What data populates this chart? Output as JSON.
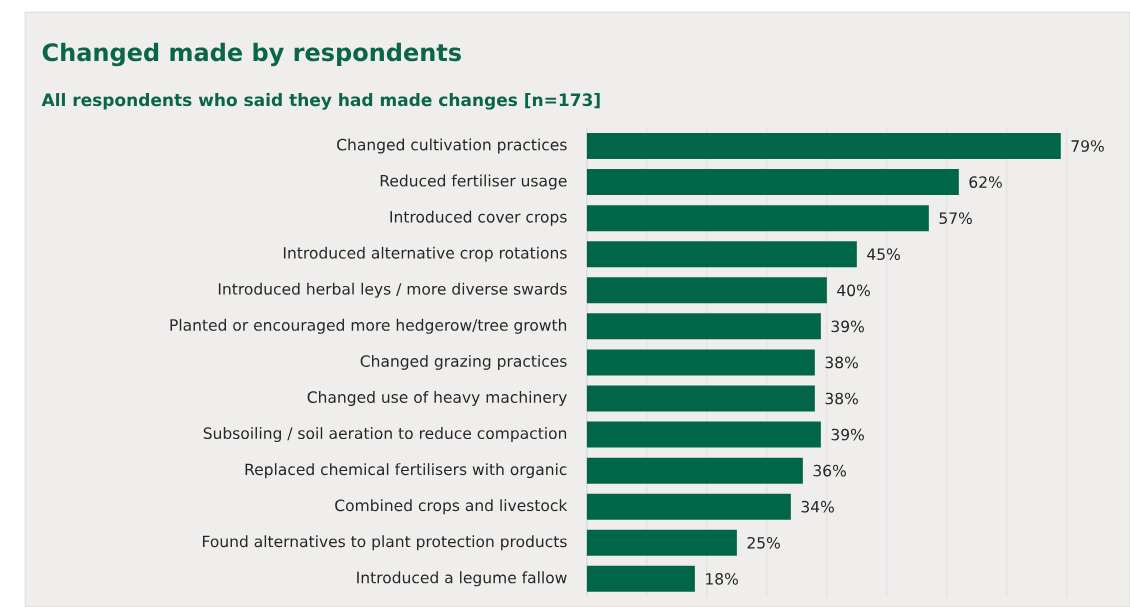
{
  "chart_data": {
    "type": "bar",
    "orientation": "horizontal",
    "title": "Changed made by respondents",
    "subtitle": "All respondents who said they had made changes [n=173]",
    "categories": [
      "Changed cultivation practices",
      "Reduced fertiliser usage",
      "Introduced cover crops",
      "Introduced alternative crop rotations",
      "Introduced herbal leys / more diverse swards",
      "Planted or encouraged more hedgerow/tree growth",
      "Changed grazing practices",
      "Changed use of heavy machinery",
      "Subsoiling / soil aeration to reduce compaction",
      "Replaced chemical fertilisers with organic",
      "Combined crops and livestock",
      "Found alternatives to plant protection products",
      "Introduced a legume fallow"
    ],
    "values": [
      79,
      62,
      57,
      45,
      40,
      39,
      38,
      38,
      39,
      36,
      34,
      25,
      18
    ],
    "value_labels": [
      "79%",
      "62%",
      "57%",
      "45%",
      "40%",
      "39%",
      "38%",
      "38%",
      "39%",
      "36%",
      "34%",
      "25%",
      "18%"
    ],
    "color": "#006647",
    "xlim": [
      0,
      80
    ],
    "xticks": [
      {
        "value": 0,
        "label": null
      },
      {
        "value": 10,
        "label": null
      },
      {
        "value": 20,
        "label": null
      },
      {
        "value": 30,
        "label": null
      },
      {
        "value": 40,
        "label": null
      },
      {
        "value": 50,
        "label": null
      },
      {
        "value": 60,
        "label": null
      },
      {
        "value": 70,
        "label": null
      },
      {
        "value": 80,
        "label": null
      }
    ],
    "grid": "x",
    "tick_labels": "y"
  }
}
